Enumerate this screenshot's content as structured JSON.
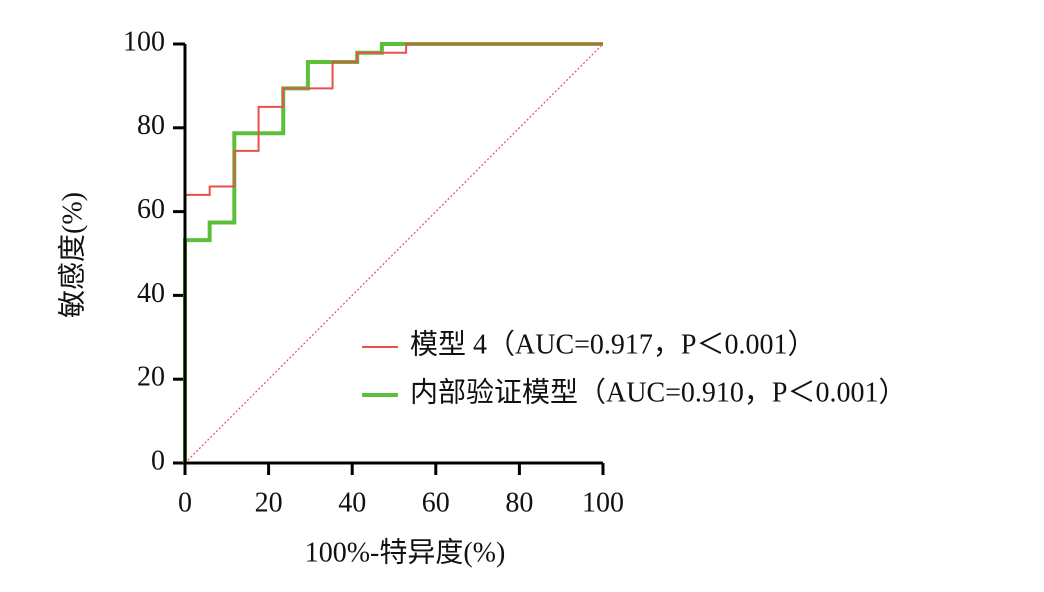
{
  "chart_data": {
    "type": "line",
    "xlabel": "100%-特异度(%)",
    "ylabel": "敏感度(%)",
    "xlim": [
      0,
      100
    ],
    "ylim": [
      0,
      100
    ],
    "xticks": [
      0,
      20,
      40,
      60,
      80,
      100
    ],
    "yticks": [
      0,
      20,
      40,
      60,
      80,
      100
    ],
    "legend": "center-right",
    "series": [
      {
        "name": "模型 4（AUC=0.917，P＜0.001）",
        "color": "#e8504a",
        "width": 2,
        "x": [
          0,
          0,
          5.9,
          5.9,
          11.8,
          11.8,
          17.6,
          17.6,
          23.5,
          23.5,
          35.3,
          35.3,
          41.2,
          41.2,
          52.9,
          52.9,
          100
        ],
        "values": [
          0,
          64,
          64,
          66,
          66,
          74.5,
          74.5,
          85,
          85,
          89.4,
          89.4,
          95.7,
          95.7,
          97.9,
          97.9,
          100,
          100
        ]
      },
      {
        "name": "内部验证模型（AUC=0.910，P＜0.001）",
        "color": "#5cbf3a",
        "width": 4,
        "x": [
          0,
          0,
          5.9,
          5.9,
          11.8,
          11.8,
          23.5,
          23.5,
          29.4,
          29.4,
          41.2,
          41.2,
          47.1,
          47.1,
          100
        ],
        "values": [
          0,
          53.2,
          53.2,
          57.4,
          57.4,
          78.7,
          78.7,
          89.4,
          89.4,
          95.7,
          95.7,
          97.9,
          97.9,
          100,
          100
        ]
      },
      {
        "color": "#e8504a",
        "width": 1.2,
        "dash": "dotted",
        "x": [
          0,
          100
        ],
        "values": [
          0,
          100
        ]
      }
    ]
  }
}
